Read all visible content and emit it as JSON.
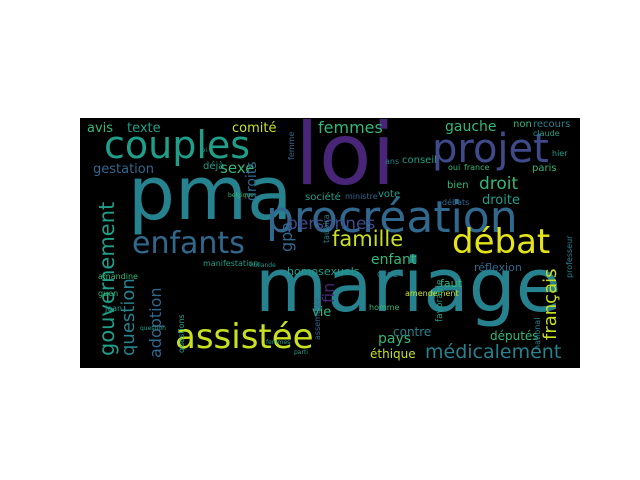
{
  "palette": {
    "purple": "#482576",
    "indigo": "#3e4a89",
    "blue": "#31688e",
    "teal": "#26828e",
    "green": "#1f9e89",
    "lime": "#35b779",
    "yellow": "#c8e020",
    "pale": "#e5e419"
  },
  "words": [
    {
      "text": "mariage",
      "color": "teal"
    },
    {
      "text": "pma",
      "color": "teal"
    },
    {
      "text": "loi",
      "color": "purple"
    },
    {
      "text": "procréation",
      "color": "blue"
    },
    {
      "text": "couples",
      "color": "green"
    },
    {
      "text": "assistée",
      "color": "yellow"
    },
    {
      "text": "projet",
      "color": "indigo"
    },
    {
      "text": "enfants",
      "color": "blue"
    },
    {
      "text": "débat",
      "color": "pale"
    },
    {
      "text": "famille",
      "color": "yellow"
    },
    {
      "text": "gouvernement",
      "color": "green"
    },
    {
      "text": "médicalement",
      "color": "teal"
    },
    {
      "text": "question",
      "color": "teal"
    },
    {
      "text": "droit",
      "color": "lime"
    },
    {
      "text": "personnes",
      "color": "indigo"
    },
    {
      "text": "français",
      "color": "yellow"
    },
    {
      "text": "adoption",
      "color": "blue"
    },
    {
      "text": "femmes",
      "color": "lime"
    },
    {
      "text": "texte",
      "color": "green"
    },
    {
      "text": "gauche",
      "color": "lime"
    },
    {
      "text": "enfant",
      "color": "lime"
    },
    {
      "text": "fin",
      "color": "purple"
    },
    {
      "text": "gpa",
      "color": "blue"
    },
    {
      "text": "sexe",
      "color": "lime"
    },
    {
      "text": "gestation",
      "color": "blue"
    },
    {
      "text": "avis",
      "color": "lime"
    },
    {
      "text": "comité",
      "color": "yellow"
    },
    {
      "text": "droits",
      "color": "blue"
    },
    {
      "text": "droite",
      "color": "green"
    },
    {
      "text": "pays",
      "color": "lime"
    },
    {
      "text": "contre",
      "color": "teal"
    },
    {
      "text": "vie",
      "color": "lime"
    },
    {
      "text": "députés",
      "color": "lime"
    },
    {
      "text": "éthique",
      "color": "yellow"
    },
    {
      "text": "homosexuels",
      "color": "green"
    },
    {
      "text": "réflexion",
      "color": "blue"
    },
    {
      "text": "faut",
      "color": "lime"
    },
    {
      "text": "conseil",
      "color": "green"
    },
    {
      "text": "société",
      "color": "green"
    },
    {
      "text": "ministre",
      "color": "blue"
    },
    {
      "text": "vote",
      "color": "green"
    },
    {
      "text": "paris",
      "color": "lime"
    },
    {
      "text": "bien",
      "color": "lime"
    },
    {
      "text": "déjà",
      "color": "green"
    },
    {
      "text": "manifestation",
      "color": "green"
    },
    {
      "text": "amendement",
      "color": "yellow"
    },
    {
      "text": "ccne",
      "color": "teal"
    },
    {
      "text": "assemblée",
      "color": "blue"
    },
    {
      "text": "homme",
      "color": "lime"
    },
    {
      "text": "favorable",
      "color": "green"
    },
    {
      "text": "national",
      "color": "teal"
    },
    {
      "text": "professeur",
      "color": "teal"
    },
    {
      "text": "recours",
      "color": "teal"
    },
    {
      "text": "non",
      "color": "lime"
    },
    {
      "text": "jean",
      "color": "green"
    },
    {
      "text": "amandine",
      "color": "lime"
    },
    {
      "text": "france",
      "color": "lime"
    },
    {
      "text": "oui",
      "color": "lime"
    },
    {
      "text": "débats",
      "color": "blue"
    },
    {
      "text": "femme",
      "color": "blue"
    },
    {
      "text": "ans",
      "color": "teal"
    },
    {
      "text": "claude",
      "color": "green"
    },
    {
      "text": "hier",
      "color": "green"
    },
    {
      "text": "guen",
      "color": "lime"
    },
    {
      "text": "hollande",
      "color": "green"
    },
    {
      "text": "belgique",
      "color": "lime"
    },
    {
      "text": "taubira",
      "color": "teal"
    },
    {
      "text": "parti",
      "color": "green"
    },
    {
      "text": "loi",
      "color": "green"
    },
    {
      "text": "question",
      "color": "green"
    },
    {
      "text": "questions",
      "color": "green"
    },
    {
      "text": "femmes",
      "color": "green"
    }
  ]
}
